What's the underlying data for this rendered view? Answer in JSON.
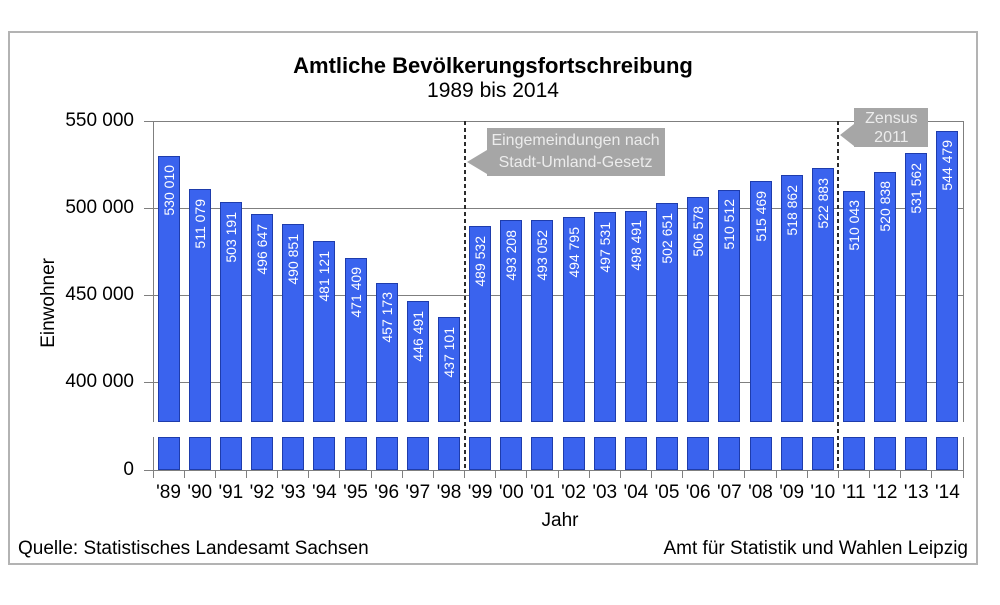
{
  "chart_data": {
    "type": "bar",
    "title": "Amtliche Bevölkerungsfortschreibung",
    "subtitle": "1989 bis 2014",
    "xlabel": "Jahr",
    "ylabel": "Einwohner",
    "categories": [
      "'89",
      "'90",
      "'91",
      "'92",
      "'93",
      "'94",
      "'95",
      "'96",
      "'97",
      "'98",
      "'99",
      "'00",
      "'01",
      "'02",
      "'03",
      "'04",
      "'05",
      "'06",
      "'07",
      "'08",
      "'09",
      "'10",
      "'11",
      "'12",
      "'13",
      "'14"
    ],
    "values": [
      530010,
      511079,
      503191,
      496647,
      490851,
      481121,
      471409,
      457173,
      446491,
      437101,
      489532,
      493208,
      493052,
      494795,
      497531,
      498491,
      502651,
      506578,
      510512,
      515469,
      518862,
      522883,
      510043,
      520838,
      531562,
      544479
    ],
    "y_ticks": [
      {
        "value": 550000,
        "label": "550 000"
      },
      {
        "value": 500000,
        "label": "500 000"
      },
      {
        "value": 450000,
        "label": "450 000"
      },
      {
        "value": 400000,
        "label": "400 000"
      },
      {
        "value": 0,
        "label": "0"
      }
    ],
    "axis_break": true,
    "ylim_upper": [
      400000,
      550000
    ],
    "grid": true,
    "legend": "none",
    "annotations": [
      {
        "lines": [
          "Eingemeindungen nach",
          "Stadt-Umland-Gesetz"
        ],
        "boundary_after_category": "'98",
        "boundary_index": 10
      },
      {
        "lines": [
          "Zensus",
          "2011"
        ],
        "boundary_after_category": "'10",
        "boundary_index": 22
      }
    ],
    "colors": {
      "bar_fill": "#3a63ee",
      "bar_border": "#1e3cac",
      "grid": "#7f7f7f",
      "annotation_bg": "#a6a6a6",
      "annotation_text": "#ececec",
      "dashed_line": "#2b2b2b",
      "bar_value_text": "#ffffff"
    }
  },
  "footer": {
    "source_left": "Quelle: Statistisches Landesamt Sachsen",
    "source_right": "Amt für Statistik und Wahlen Leipzig"
  }
}
